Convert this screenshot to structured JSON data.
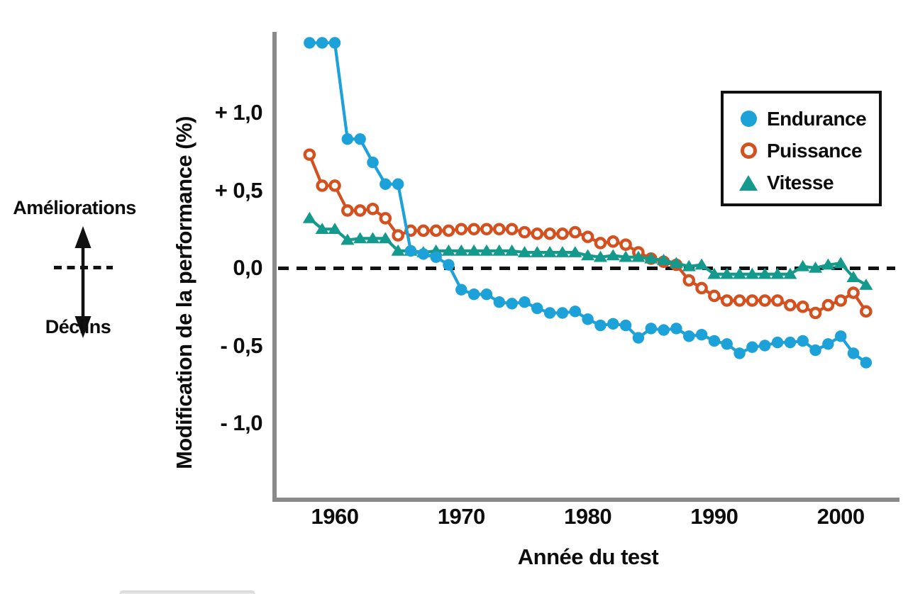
{
  "annotations": {
    "improve": "Améliorations",
    "decline": "Déclins"
  },
  "colors": {
    "endurance": "#1CA1D8",
    "puissance": "#D4501F",
    "vitesse": "#149A8C",
    "axis": "#8A8A8A",
    "zero_line": "#111111",
    "text": "#0D0D0D"
  },
  "chart_data": {
    "type": "line",
    "title": "",
    "xlabel": "Année du test",
    "ylabel": "Modification de la performance (%)",
    "x_ticks": [
      1960,
      1970,
      1980,
      1990,
      2000
    ],
    "y_ticks": [
      {
        "value": 1.0,
        "label": "+ 1,0"
      },
      {
        "value": 0.5,
        "label": "+ 0,5"
      },
      {
        "value": 0.0,
        "label": "0,0"
      },
      {
        "value": -0.5,
        "label": "- 0,5"
      },
      {
        "value": -1.0,
        "label": "- 1,0"
      }
    ],
    "xlim": [
      1955.3,
      2004.6
    ],
    "ylim": [
      -1.5,
      1.5
    ],
    "grid": false,
    "zero_line_dashed": true,
    "legend_position": "upper right",
    "x": [
      1958,
      1959,
      1960,
      1961,
      1962,
      1963,
      1964,
      1965,
      1966,
      1967,
      1968,
      1969,
      1970,
      1971,
      1972,
      1973,
      1974,
      1975,
      1976,
      1977,
      1978,
      1979,
      1980,
      1981,
      1982,
      1983,
      1984,
      1985,
      1986,
      1987,
      1988,
      1989,
      1990,
      1991,
      1992,
      1993,
      1994,
      1995,
      1996,
      1997,
      1998,
      1999,
      2000,
      2001,
      2002
    ],
    "series": [
      {
        "name": "Endurance",
        "marker": "circle-filled",
        "color": "#1CA1D8",
        "values": [
          1.45,
          1.45,
          1.45,
          0.83,
          0.83,
          0.68,
          0.54,
          0.54,
          0.11,
          0.09,
          0.07,
          0.02,
          -0.14,
          -0.17,
          -0.17,
          -0.22,
          -0.23,
          -0.22,
          -0.26,
          -0.29,
          -0.29,
          -0.28,
          -0.33,
          -0.37,
          -0.36,
          -0.37,
          -0.45,
          -0.39,
          -0.4,
          -0.39,
          -0.44,
          -0.43,
          -0.47,
          -0.49,
          -0.55,
          -0.51,
          -0.5,
          -0.48,
          -0.48,
          -0.47,
          -0.53,
          -0.49,
          -0.44,
          -0.55,
          -0.61
        ]
      },
      {
        "name": "Puissance",
        "marker": "circle-open",
        "color": "#D4501F",
        "values": [
          0.73,
          0.53,
          0.53,
          0.37,
          0.37,
          0.38,
          0.32,
          0.21,
          0.24,
          0.24,
          0.24,
          0.24,
          0.25,
          0.25,
          0.25,
          0.25,
          0.25,
          0.23,
          0.22,
          0.22,
          0.22,
          0.23,
          0.2,
          0.16,
          0.17,
          0.15,
          0.1,
          0.06,
          0.04,
          0.02,
          -0.08,
          -0.13,
          -0.18,
          -0.21,
          -0.21,
          -0.21,
          -0.21,
          -0.21,
          -0.24,
          -0.25,
          -0.29,
          -0.24,
          -0.21,
          -0.16,
          -0.28
        ]
      },
      {
        "name": "Vitesse",
        "marker": "triangle-filled",
        "color": "#149A8C",
        "values": [
          0.32,
          0.25,
          0.25,
          0.18,
          0.19,
          0.19,
          0.19,
          0.11,
          0.11,
          0.1,
          0.11,
          0.11,
          0.11,
          0.11,
          0.11,
          0.11,
          0.11,
          0.1,
          0.1,
          0.1,
          0.1,
          0.1,
          0.08,
          0.07,
          0.08,
          0.07,
          0.07,
          0.06,
          0.05,
          0.03,
          0.01,
          0.02,
          -0.04,
          -0.04,
          -0.04,
          -0.04,
          -0.04,
          -0.04,
          -0.04,
          0.01,
          0.0,
          0.02,
          0.03,
          -0.06,
          -0.11
        ]
      }
    ]
  }
}
